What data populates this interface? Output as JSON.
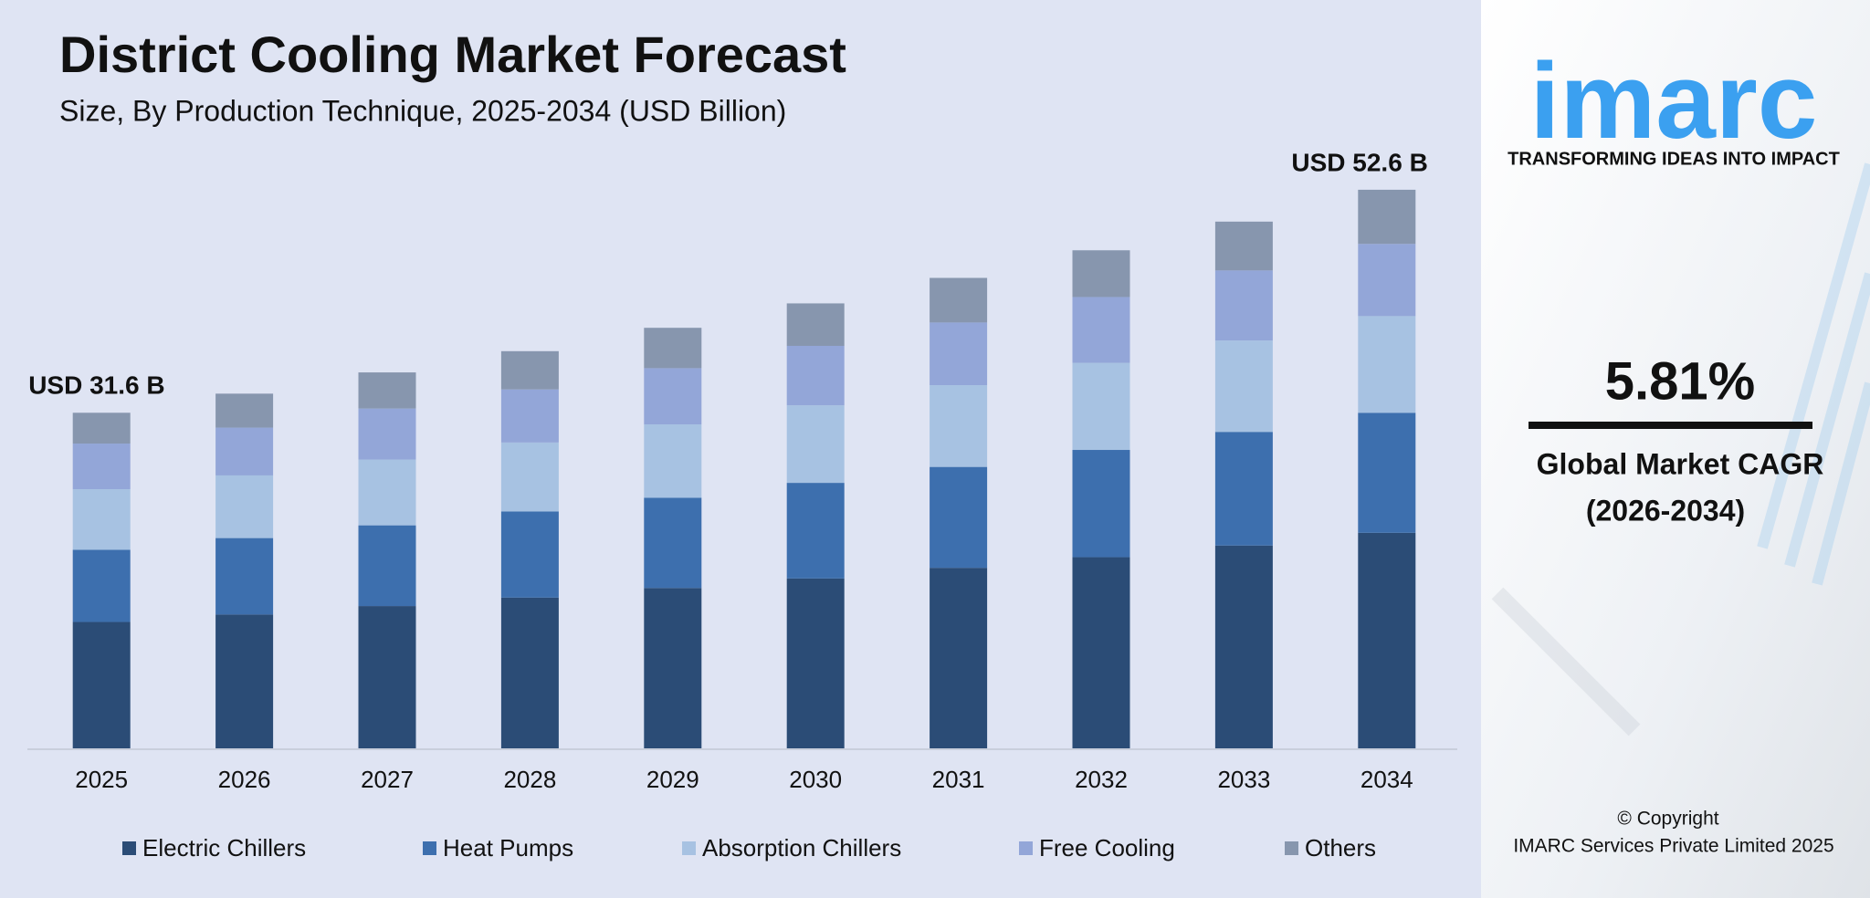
{
  "chart_data": {
    "type": "bar",
    "stacked": true,
    "title": "District Cooling Market Forecast",
    "subtitle": "Size, By Production Technique, 2025-2034 (USD Billion)",
    "categories": [
      "2025",
      "2026",
      "2027",
      "2028",
      "2029",
      "2030",
      "2031",
      "2032",
      "2033",
      "2034"
    ],
    "series": [
      {
        "name": "Electric Chillers",
        "color": "#2b4c76",
        "values": [
          11.9,
          12.6,
          13.4,
          14.2,
          15.1,
          16.0,
          17.0,
          18.0,
          19.1,
          20.3
        ]
      },
      {
        "name": "Heat Pumps",
        "color": "#3d6fae",
        "values": [
          6.8,
          7.2,
          7.6,
          8.1,
          8.5,
          9.0,
          9.5,
          10.1,
          10.7,
          11.3
        ]
      },
      {
        "name": "Absorption Chillers",
        "color": "#a7c2e2",
        "values": [
          5.7,
          5.9,
          6.2,
          6.5,
          6.9,
          7.3,
          7.7,
          8.2,
          8.6,
          9.1
        ]
      },
      {
        "name": "Free Cooling",
        "color": "#93a6d8",
        "values": [
          4.3,
          4.5,
          4.8,
          5.0,
          5.3,
          5.6,
          5.9,
          6.2,
          6.6,
          6.8
        ]
      },
      {
        "name": "Others",
        "color": "#8796ae",
        "values": [
          2.9,
          3.2,
          3.4,
          3.6,
          3.8,
          4.0,
          4.2,
          4.4,
          4.6,
          5.1
        ]
      }
    ],
    "ylim": [
      0,
      55
    ],
    "annotations": [
      {
        "text": "USD 31.6 B",
        "category": 0
      },
      {
        "text": "USD 52.6 B",
        "category": 9
      }
    ]
  },
  "sidebar": {
    "logo": "imarc",
    "tagline": "TRANSFORMING IDEAS INTO IMPACT",
    "cagr": "5.81%",
    "cagr_label": "Global Market CAGR",
    "cagr_period": "(2026-2034)",
    "copyright": "© Copyright",
    "company": "IMARC Services Private Limited 2025"
  }
}
